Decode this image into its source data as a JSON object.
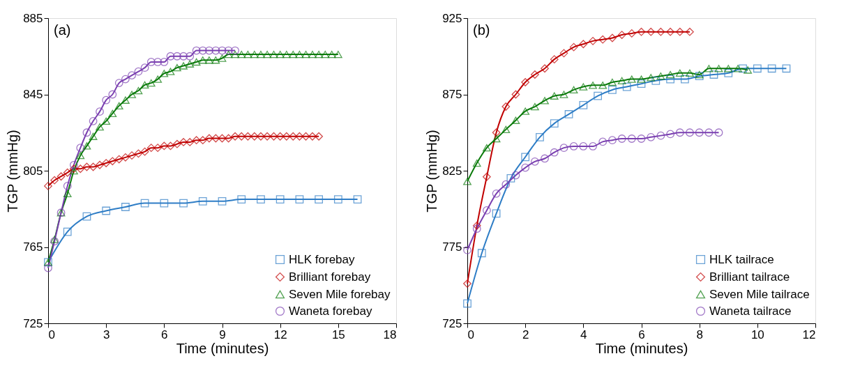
{
  "chart_data": [
    {
      "type": "line",
      "xlabel": "Time (minutes)",
      "ylabel": "TGP (mmHg)",
      "annotations": [
        "(a)"
      ],
      "xlim": [
        0,
        18
      ],
      "xticks": [
        0,
        3,
        6,
        9,
        12,
        15,
        18
      ],
      "ylim": [
        725,
        885
      ],
      "yticks": [
        725,
        765,
        805,
        845,
        885
      ],
      "grid": false,
      "legend": "bottom right",
      "line_style": "solid",
      "series": [
        {
          "name": "HLK forebay",
          "color": "#2e7dc6",
          "marker": "square",
          "x": [
            0,
            1,
            2,
            3,
            4,
            5,
            6,
            7,
            8,
            9,
            10,
            11,
            12,
            13,
            14,
            15,
            16
          ],
          "values": [
            757,
            773,
            781,
            784,
            786,
            788,
            788,
            788,
            789,
            789,
            790,
            790,
            790,
            790,
            790,
            790,
            790
          ]
        },
        {
          "name": "Brilliant forebay",
          "color": "#c00000",
          "marker": "diamond",
          "x": [
            0,
            0.33,
            0.67,
            1,
            1.33,
            1.67,
            2,
            2.33,
            2.67,
            3,
            3.33,
            3.67,
            4,
            4.33,
            4.67,
            5,
            5.33,
            5.67,
            6,
            6.33,
            6.67,
            7,
            7.33,
            7.67,
            8,
            8.33,
            8.67,
            9,
            9.33,
            9.67,
            10,
            10.33,
            10.67,
            11,
            11.33,
            11.67,
            12,
            12.33,
            12.67,
            13,
            13.33,
            13.67,
            14
          ],
          "values": [
            797,
            800,
            802,
            804,
            806,
            806,
            807,
            807,
            808,
            809,
            810,
            811,
            812,
            813,
            814,
            815,
            817,
            817,
            818,
            818,
            819,
            820,
            820,
            821,
            821,
            822,
            822,
            822,
            822,
            823,
            823,
            823,
            823,
            823,
            823,
            823,
            823,
            823,
            823,
            823,
            823,
            823,
            823
          ]
        },
        {
          "name": "Seven Mile forebay",
          "color": "#0a7a0a",
          "marker": "triangle",
          "x": [
            0,
            0.33,
            0.67,
            1,
            1.33,
            1.67,
            2,
            2.33,
            2.67,
            3,
            3.33,
            3.67,
            4,
            4.33,
            4.67,
            5,
            5.33,
            5.67,
            6,
            6.33,
            6.67,
            7,
            7.33,
            7.67,
            8,
            8.33,
            8.67,
            9,
            9.33,
            9.67,
            10,
            10.33,
            10.67,
            11,
            11.33,
            11.67,
            12,
            12.33,
            12.67,
            13,
            13.33,
            13.67,
            14,
            14.33,
            14.67,
            15
          ],
          "values": [
            757,
            769,
            783,
            793,
            805,
            813,
            818,
            823,
            828,
            831,
            835,
            839,
            842,
            845,
            847,
            850,
            851,
            853,
            856,
            857,
            859,
            860,
            861,
            862,
            863,
            863,
            863,
            864,
            866,
            866,
            866,
            866,
            866,
            866,
            866,
            866,
            866,
            866,
            866,
            866,
            866,
            866,
            866,
            866,
            866,
            866
          ]
        },
        {
          "name": "Waneta forebay",
          "color": "#7a3fb0",
          "marker": "circle",
          "x": [
            0,
            0.33,
            0.67,
            1,
            1.33,
            1.67,
            2,
            2.33,
            2.67,
            3,
            3.33,
            3.67,
            4,
            4.33,
            4.67,
            5,
            5.33,
            5.67,
            6,
            6.33,
            6.67,
            7,
            7.33,
            7.67,
            8,
            8.33,
            8.67,
            9,
            9.33,
            9.67
          ],
          "values": [
            754,
            768,
            783,
            797,
            808,
            817,
            825,
            831,
            836,
            842,
            845,
            851,
            853,
            855,
            857,
            859,
            862,
            862,
            862,
            865,
            865,
            865,
            865,
            868,
            868,
            868,
            868,
            868,
            868,
            868
          ]
        }
      ]
    },
    {
      "type": "line",
      "xlabel": "Time (minutes)",
      "ylabel": "TGP (mmHg)",
      "annotations": [
        "(b)"
      ],
      "xlim": [
        0,
        12
      ],
      "xticks": [
        0,
        2,
        4,
        6,
        8,
        10,
        12
      ],
      "ylim": [
        725,
        925
      ],
      "yticks": [
        725,
        775,
        825,
        875,
        925
      ],
      "grid": false,
      "legend": "bottom right",
      "line_style": "solid",
      "series": [
        {
          "name": "HLK tailrace",
          "color": "#2e7dc6",
          "marker": "square",
          "x": [
            0,
            0.5,
            1,
            1.5,
            2,
            2.5,
            3,
            3.5,
            4,
            4.5,
            5,
            5.5,
            6,
            6.5,
            7,
            7.5,
            8,
            8.5,
            9,
            9.5,
            10,
            10.5,
            11
          ],
          "values": [
            738,
            771,
            797,
            820,
            834,
            847,
            856,
            862,
            868,
            874,
            878,
            880,
            882,
            884,
            885,
            885,
            887,
            888,
            889,
            892,
            892,
            892,
            892
          ]
        },
        {
          "name": "Brilliant tailrace",
          "color": "#c00000",
          "marker": "diamond",
          "x": [
            0,
            0.33,
            0.67,
            1,
            1.33,
            1.67,
            2,
            2.33,
            2.67,
            3,
            3.33,
            3.67,
            4,
            4.33,
            4.67,
            5,
            5.33,
            5.67,
            6,
            6.33,
            6.67,
            7,
            7.33,
            7.67
          ],
          "values": [
            751,
            789,
            821,
            850,
            867,
            875,
            883,
            888,
            892,
            898,
            902,
            906,
            908,
            910,
            911,
            912,
            914,
            915,
            916,
            916,
            916,
            916,
            916,
            916
          ]
        },
        {
          "name": "Seven Mile tailrace",
          "color": "#0a7a0a",
          "marker": "triangle",
          "x": [
            0,
            0.33,
            0.67,
            1,
            1.33,
            1.67,
            2,
            2.33,
            2.67,
            3,
            3.33,
            3.67,
            4,
            4.33,
            4.67,
            5,
            5.33,
            5.67,
            6,
            6.33,
            6.67,
            7,
            7.33,
            7.67,
            8,
            8.33,
            8.67,
            9,
            9.33,
            9.67
          ],
          "values": [
            818,
            830,
            840,
            846,
            852,
            858,
            864,
            867,
            871,
            874,
            875,
            878,
            880,
            881,
            881,
            883,
            884,
            885,
            885,
            886,
            887,
            888,
            889,
            889,
            888,
            892,
            892,
            892,
            892,
            891
          ]
        },
        {
          "name": "Waneta tailrace",
          "color": "#7a3fb0",
          "marker": "circle",
          "x": [
            0,
            0.33,
            0.67,
            1,
            1.33,
            1.67,
            2,
            2.33,
            2.67,
            3,
            3.33,
            3.67,
            4,
            4.33,
            4.67,
            5,
            5.33,
            5.67,
            6,
            6.33,
            6.67,
            7,
            7.33,
            7.67,
            8,
            8.33,
            8.67
          ],
          "values": [
            773,
            787,
            799,
            810,
            816,
            822,
            827,
            831,
            833,
            837,
            840,
            841,
            841,
            841,
            844,
            845,
            846,
            846,
            846,
            847,
            848,
            849,
            850,
            850,
            850,
            850,
            850
          ]
        }
      ]
    }
  ]
}
